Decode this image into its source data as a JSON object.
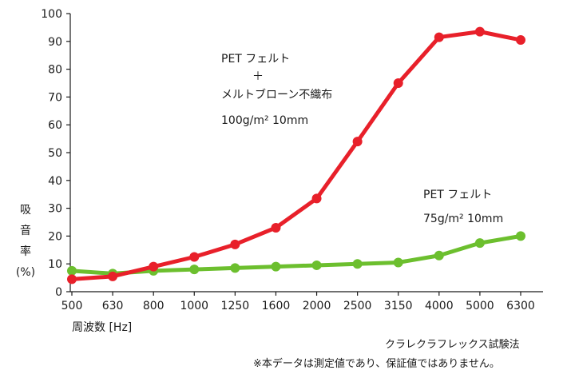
{
  "chart_data": {
    "type": "line",
    "categories": [
      "500",
      "630",
      "800",
      "1000",
      "1250",
      "1600",
      "2000",
      "2500",
      "3150",
      "4000",
      "5000",
      "6300"
    ],
    "xlabel": "周波数 [Hz]",
    "ylabel_lines": [
      "吸",
      "音",
      "率",
      "(%)"
    ],
    "ylim": [
      0,
      100
    ],
    "yticks": [
      0,
      10,
      20,
      30,
      40,
      50,
      60,
      70,
      80,
      90,
      100
    ],
    "grid": false,
    "series": [
      {
        "label_lines": [
          "PET フェルト",
          "＋",
          "メルトブローン不織布",
          "100g/m² 10mm"
        ],
        "color": "#e8202a",
        "values": [
          4.5,
          5.5,
          9,
          12.5,
          17,
          23,
          33.5,
          54,
          75,
          91.5,
          93.5,
          90.5
        ]
      },
      {
        "label_lines": [
          "PET フェルト",
          "75g/m² 10mm"
        ],
        "color": "#6cbf2e",
        "values": [
          7.5,
          6.5,
          7.5,
          8,
          8.5,
          9,
          9.5,
          10,
          10.5,
          13,
          17.5,
          20
        ]
      }
    ]
  },
  "notes": {
    "method": "クラレクラフレックス試験法",
    "disclaimer": "※本データは測定値であり、保証値ではありません。"
  }
}
